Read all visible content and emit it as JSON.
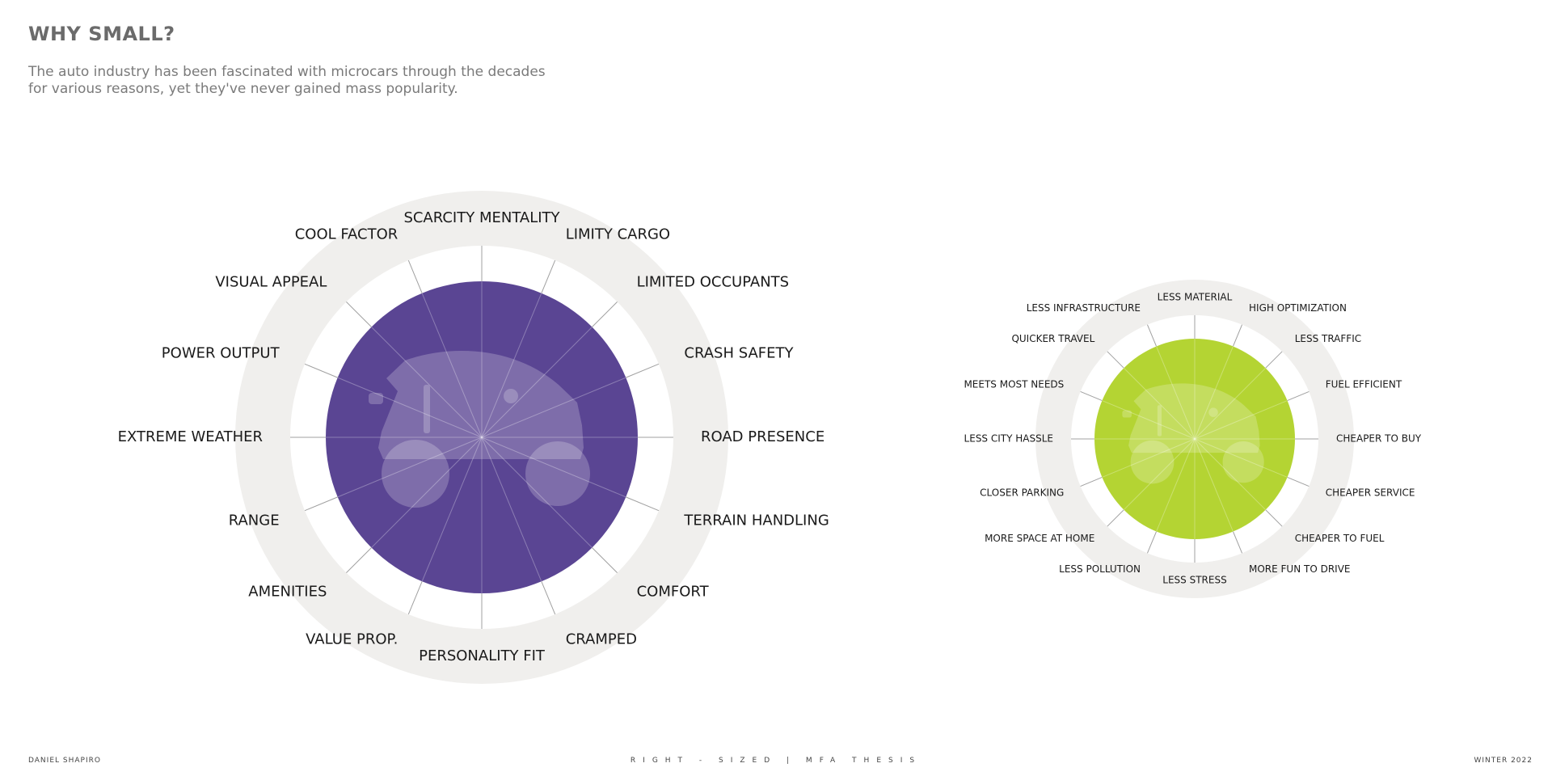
{
  "heading": "WHY SMALL?",
  "intro": {
    "line1": "The auto industry has been fascinated with microcars through the decades",
    "line2": "for various reasons, yet they've never gained mass popularity."
  },
  "colors": {
    "purple": "#5a4593",
    "lime": "#b4d433",
    "ring": "#f0efed",
    "spoke": "#a0a0a0"
  },
  "icons": {
    "vehicle": "microcar-silhouette-icon"
  },
  "left_wheel": {
    "labels": [
      "SCARCITY MENTALITY",
      "LIMITY CARGO",
      "LIMITED OCCUPANTS",
      "CRASH SAFETY",
      "ROAD PRESENCE",
      "TERRAIN HANDLING",
      "COMFORT",
      "CRAMPED",
      "PERSONALITY FIT",
      "VALUE PROP.",
      "AMENITIES",
      "RANGE",
      "EXTREME WEATHER",
      "POWER OUTPUT",
      "VISUAL APPEAL",
      "COOL FACTOR"
    ]
  },
  "right_wheel": {
    "labels": [
      "LESS MATERIAL",
      "HIGH OPTIMIZATION",
      "LESS TRAFFIC",
      "FUEL EFFICIENT",
      "CHEAPER TO BUY",
      "CHEAPER SERVICE",
      "CHEAPER TO FUEL",
      "MORE FUN TO DRIVE",
      "LESS STRESS",
      "LESS POLLUTION",
      "MORE SPACE AT HOME",
      "CLOSER PARKING",
      "LESS CITY HASSLE",
      "MEETS MOST NEEDS",
      "QUICKER TRAVEL",
      "LESS INFRASTRUCTURE"
    ]
  },
  "footer": {
    "author": "DANIEL SHAPIRO",
    "project": "RIGHT - SIZED | MFA THESIS",
    "term": "WINTER 2022"
  }
}
